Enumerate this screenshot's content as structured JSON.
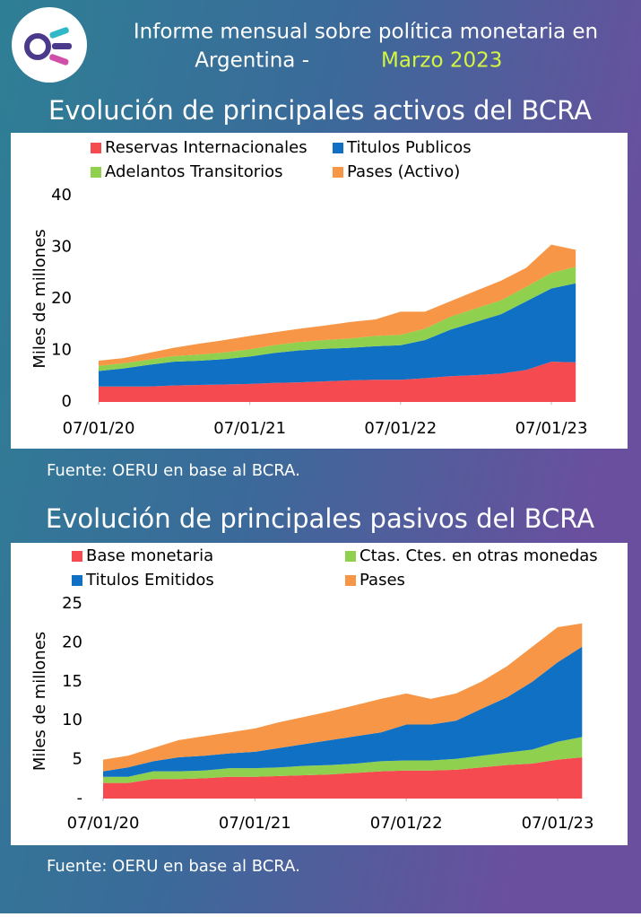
{
  "header": {
    "title_line1": "Informe mensual sobre política monetaria en",
    "title_line2": "Argentina -",
    "title_highlight": "Marzo 2023"
  },
  "chart_data": [
    {
      "type": "stacked_area",
      "title": "Evolución de principales activos del BCRA",
      "y_label": "Miles de millones",
      "source": "Fuente: OERU en base al BCRA.",
      "x": [
        "07/01/20",
        "07/03/20",
        "07/05/20",
        "07/07/20",
        "07/09/20",
        "07/11/20",
        "07/01/21",
        "07/03/21",
        "07/05/21",
        "07/07/21",
        "07/09/21",
        "07/11/21",
        "07/01/22",
        "07/03/22",
        "07/05/22",
        "07/07/22",
        "07/09/22",
        "07/11/22",
        "07/01/23",
        "07/03/23"
      ],
      "xticks": [
        "07/01/20",
        "07/01/21",
        "07/01/22",
        "07/01/23"
      ],
      "ylim": [
        0,
        40
      ],
      "yticks": [
        0,
        10,
        20,
        30,
        40
      ],
      "series": [
        {
          "name": "Reservas Internacionales",
          "color": "#f54a4f",
          "values": [
            3,
            3,
            3,
            3.2,
            3.3,
            3.4,
            3.5,
            3.7,
            3.8,
            4,
            4.2,
            4.3,
            4.3,
            4.6,
            5,
            5.2,
            5.5,
            6.2,
            7.8,
            7.7
          ]
        },
        {
          "name": "Titulos Publicos",
          "color": "#1070c4",
          "values": [
            3,
            3.5,
            4.2,
            4.6,
            4.7,
            4.9,
            5.3,
            5.8,
            6.2,
            6.3,
            6.3,
            6.5,
            6.7,
            7.4,
            9,
            10.3,
            11.5,
            13.3,
            14.2,
            15.3
          ]
        },
        {
          "name": "Adelantos Transitorios",
          "color": "#8fd14f",
          "values": [
            1,
            1,
            1,
            1.1,
            1.2,
            1.3,
            1.4,
            1.5,
            1.6,
            1.7,
            1.8,
            2,
            2,
            2.2,
            2.5,
            2.6,
            2.7,
            2.8,
            3,
            3.2
          ]
        },
        {
          "name": "Pases (Activo)",
          "color": "#f79646",
          "values": [
            1,
            1,
            1.3,
            1.6,
            2.1,
            2.4,
            2.6,
            2.5,
            2.6,
            2.8,
            3.2,
            3.2,
            4.5,
            3.3,
            3,
            3.4,
            3.8,
            3.7,
            5.5,
            3.3
          ]
        }
      ]
    },
    {
      "type": "stacked_area",
      "title": "Evolución de principales pasivos del BCRA",
      "y_label": "Miles de millones",
      "source": "Fuente: OERU en base al BCRA.",
      "x": [
        "07/01/20",
        "07/03/20",
        "07/05/20",
        "07/07/20",
        "07/09/20",
        "07/11/20",
        "07/01/21",
        "07/03/21",
        "07/05/21",
        "07/07/21",
        "07/09/21",
        "07/11/21",
        "07/01/22",
        "07/03/22",
        "07/05/22",
        "07/07/22",
        "07/09/22",
        "07/11/22",
        "07/01/23",
        "07/03/23"
      ],
      "xticks": [
        "07/01/20",
        "07/01/21",
        "07/01/22",
        "07/01/23"
      ],
      "ylim": [
        0,
        25
      ],
      "yticks": [
        {
          "value": 0,
          "label": "-"
        },
        5,
        10,
        15,
        20,
        25
      ],
      "series": [
        {
          "name": "Base monetaria",
          "color": "#f54a4f",
          "values": [
            2,
            2,
            2.5,
            2.5,
            2.6,
            2.8,
            2.8,
            2.9,
            3,
            3.1,
            3.3,
            3.5,
            3.6,
            3.6,
            3.7,
            4,
            4.3,
            4.5,
            5,
            5.3
          ]
        },
        {
          "name": "Ctas. Ctes. en otras monedas",
          "color": "#8fd14f",
          "values": [
            0.8,
            0.8,
            1,
            1,
            1,
            1.1,
            1.1,
            1.1,
            1.2,
            1.2,
            1.2,
            1.3,
            1.3,
            1.3,
            1.4,
            1.5,
            1.6,
            1.8,
            2.3,
            2.6
          ]
        },
        {
          "name": "Titulos Emitidos",
          "color": "#1070c4",
          "values": [
            0.7,
            1.2,
            1.3,
            1.8,
            1.9,
            1.9,
            2.1,
            2.5,
            2.8,
            3.2,
            3.5,
            3.7,
            4.6,
            4.6,
            4.9,
            6,
            7.1,
            8.7,
            10.2,
            11.6
          ]
        },
        {
          "name": "Pases",
          "color": "#f79646",
          "values": [
            1.5,
            1.5,
            1.7,
            2.2,
            2.5,
            2.7,
            3,
            3.3,
            3.5,
            3.7,
            4,
            4.3,
            4,
            3.3,
            3.5,
            3.5,
            4,
            4.5,
            4.5,
            3
          ]
        }
      ]
    }
  ]
}
